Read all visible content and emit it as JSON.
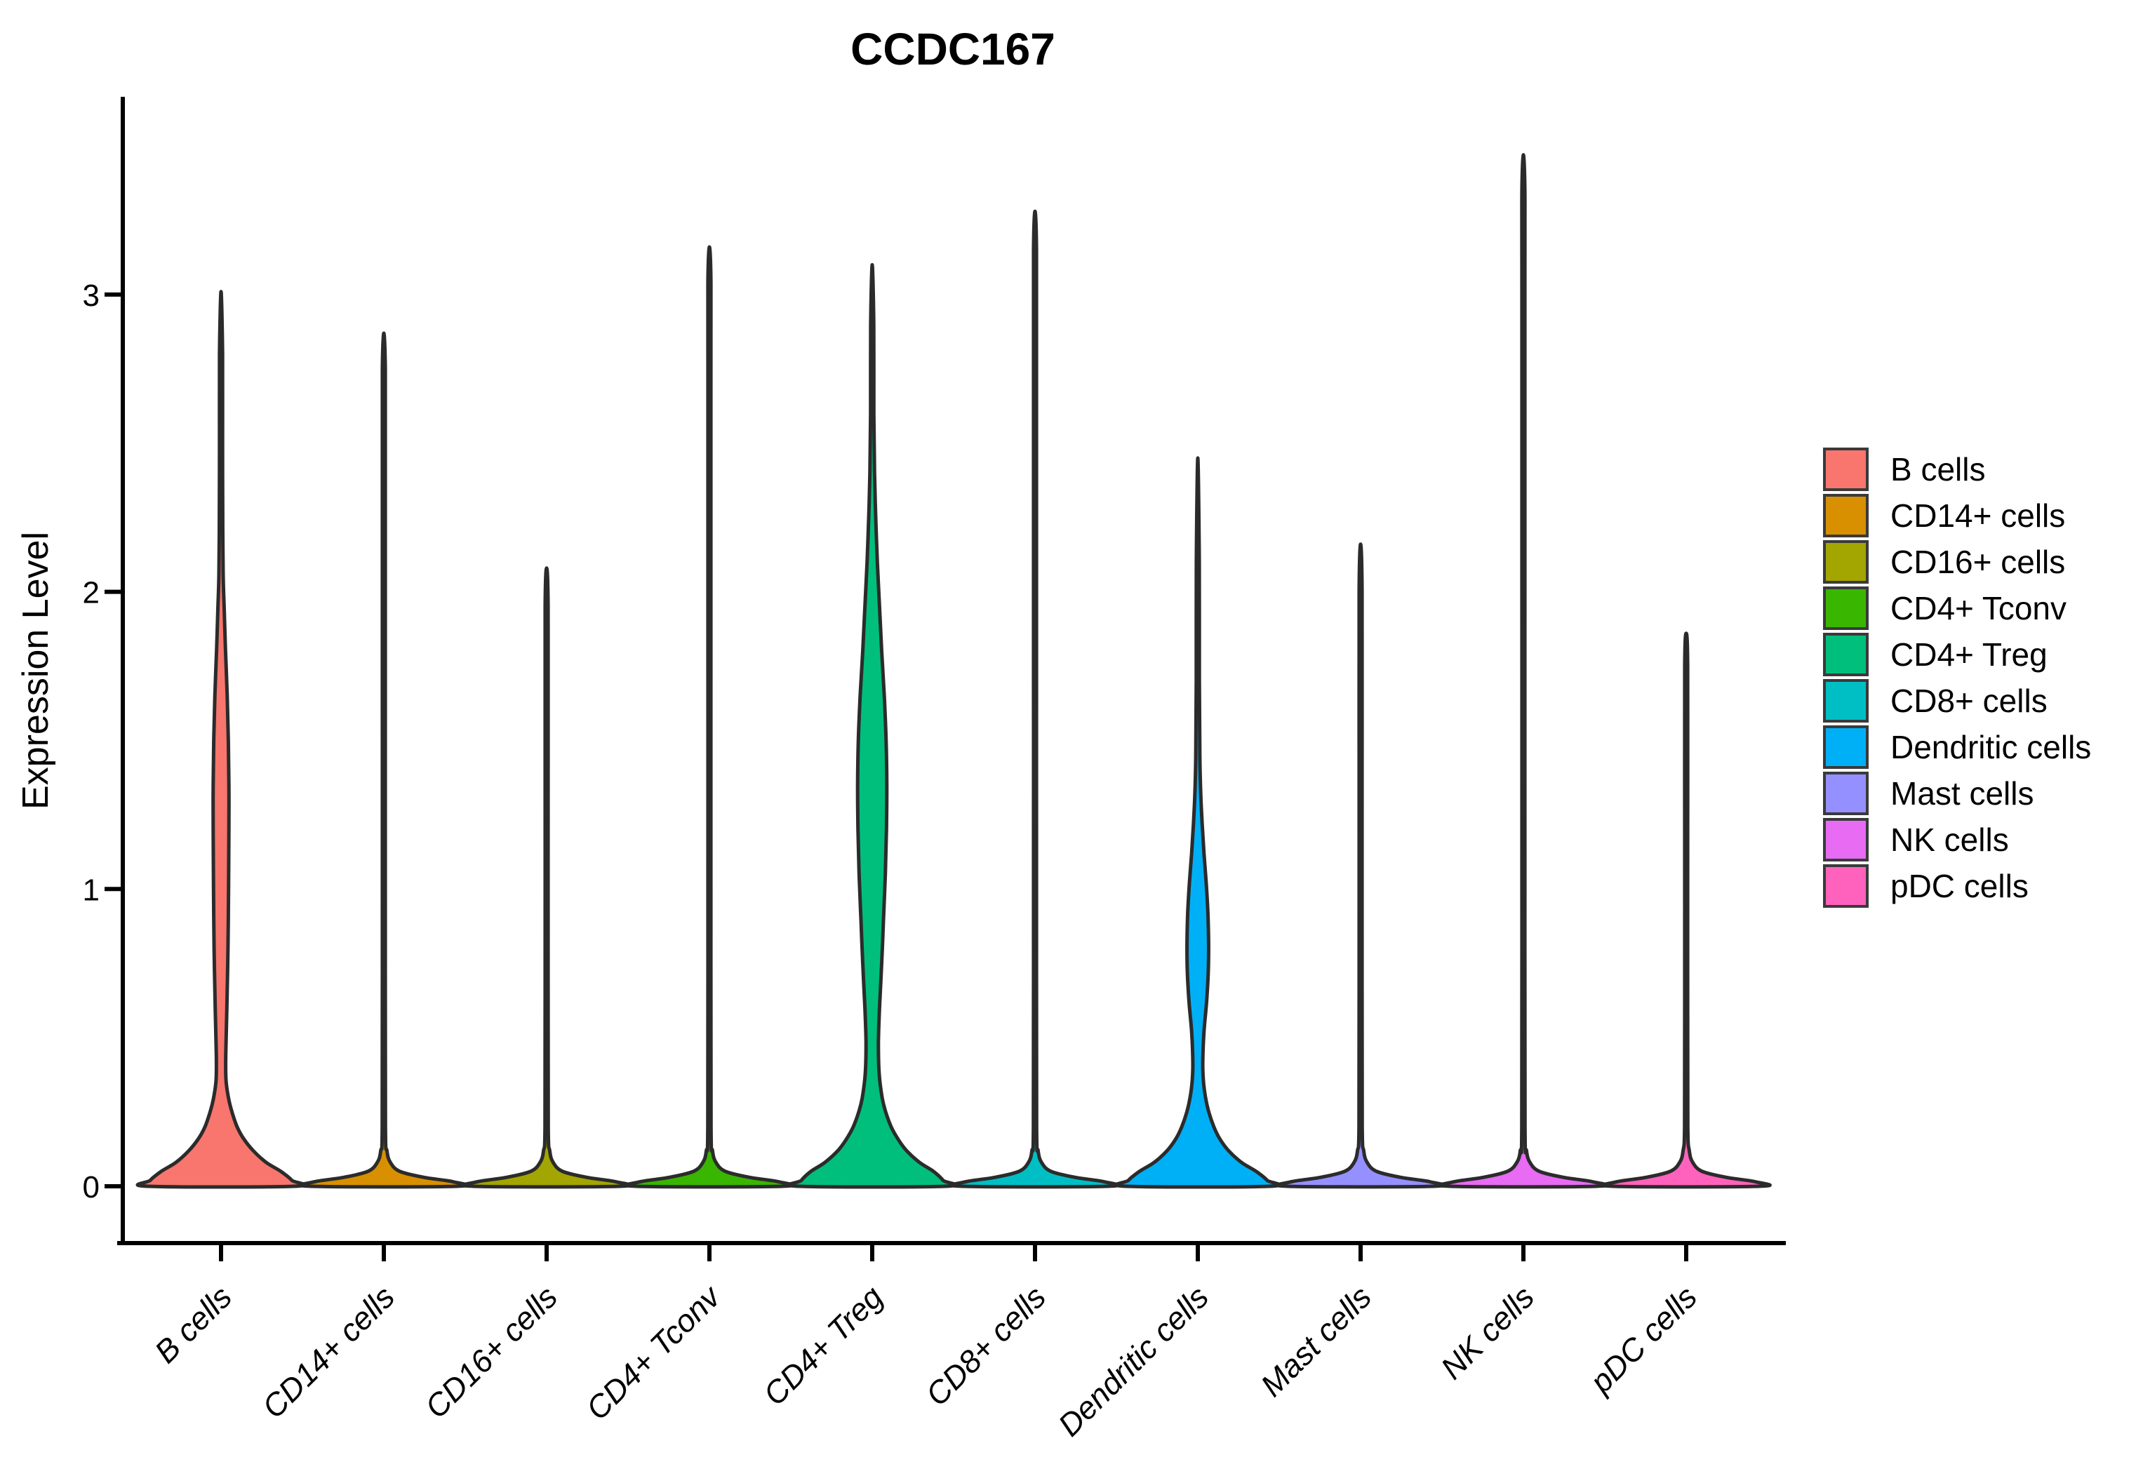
{
  "chart_data": {
    "type": "violin",
    "title": "CCDC167",
    "ylabel": "Expression Level",
    "xlabel": "",
    "y_ticks": [
      0,
      1,
      2,
      3
    ],
    "ylim": [
      0,
      3.6
    ],
    "grid": "off",
    "legend_position": "right",
    "outline_color": "#2b2b2b",
    "axis_color": "#000000",
    "categories": [
      "B cells",
      "CD14+ cells",
      "CD16+ cells",
      "CD4+ Tconv",
      "CD4+ Treg",
      "CD8+ cells",
      "Dendritic cells",
      "Mast cells",
      "NK cells",
      "pDC cells"
    ],
    "series": [
      {
        "name": "B cells",
        "color": "#F8766D",
        "max_expression": 3.01,
        "density": [
          [
            0,
            1.0
          ],
          [
            0.02,
            0.97
          ],
          [
            0.05,
            0.82
          ],
          [
            0.08,
            0.62
          ],
          [
            0.12,
            0.44
          ],
          [
            0.16,
            0.31
          ],
          [
            0.2,
            0.22
          ],
          [
            0.25,
            0.15
          ],
          [
            0.3,
            0.1
          ],
          [
            0.36,
            0.067
          ],
          [
            0.45,
            0.065
          ],
          [
            0.6,
            0.08
          ],
          [
            0.8,
            0.095
          ],
          [
            1.0,
            0.103
          ],
          [
            1.2,
            0.108
          ],
          [
            1.35,
            0.108
          ],
          [
            1.5,
            0.1
          ],
          [
            1.65,
            0.085
          ],
          [
            1.8,
            0.062
          ],
          [
            1.95,
            0.042
          ],
          [
            2.05,
            0.03
          ],
          [
            2.2,
            0.024
          ],
          [
            2.5,
            0.021
          ],
          [
            2.8,
            0.021
          ],
          [
            3.01,
            0
          ]
        ]
      },
      {
        "name": "CD14+ cells",
        "color": "#D89000",
        "max_expression": 2.87,
        "density": [
          [
            0,
            1.0
          ],
          [
            0.015,
            0.95
          ],
          [
            0.03,
            0.55
          ],
          [
            0.05,
            0.22
          ],
          [
            0.08,
            0.09
          ],
          [
            0.12,
            0.042
          ],
          [
            0.2,
            0.022
          ],
          [
            0.8,
            0.02
          ],
          [
            1.6,
            0.02
          ],
          [
            2.4,
            0.02
          ],
          [
            2.75,
            0.02
          ],
          [
            2.87,
            0
          ]
        ]
      },
      {
        "name": "CD16+ cells",
        "color": "#A3A500",
        "max_expression": 2.08,
        "density": [
          [
            0,
            1.0
          ],
          [
            0.015,
            0.95
          ],
          [
            0.03,
            0.55
          ],
          [
            0.05,
            0.22
          ],
          [
            0.08,
            0.09
          ],
          [
            0.12,
            0.042
          ],
          [
            0.2,
            0.022
          ],
          [
            0.7,
            0.02
          ],
          [
            1.4,
            0.02
          ],
          [
            1.95,
            0.02
          ],
          [
            2.08,
            0
          ]
        ]
      },
      {
        "name": "CD4+ Tconv",
        "color": "#39B600",
        "max_expression": 3.16,
        "density": [
          [
            0,
            1.0
          ],
          [
            0.015,
            0.95
          ],
          [
            0.03,
            0.55
          ],
          [
            0.05,
            0.22
          ],
          [
            0.08,
            0.09
          ],
          [
            0.12,
            0.042
          ],
          [
            0.2,
            0.022
          ],
          [
            0.9,
            0.02
          ],
          [
            1.8,
            0.02
          ],
          [
            2.7,
            0.02
          ],
          [
            3.05,
            0.02
          ],
          [
            3.16,
            0
          ]
        ]
      },
      {
        "name": "CD4+ Treg",
        "color": "#00BF7D",
        "max_expression": 3.1,
        "density": [
          [
            0,
            1.0
          ],
          [
            0.02,
            0.97
          ],
          [
            0.05,
            0.84
          ],
          [
            0.08,
            0.65
          ],
          [
            0.12,
            0.47
          ],
          [
            0.16,
            0.35
          ],
          [
            0.2,
            0.26
          ],
          [
            0.25,
            0.185
          ],
          [
            0.3,
            0.135
          ],
          [
            0.38,
            0.095
          ],
          [
            0.48,
            0.085
          ],
          [
            0.6,
            0.1
          ],
          [
            0.75,
            0.13
          ],
          [
            0.9,
            0.155
          ],
          [
            1.05,
            0.18
          ],
          [
            1.2,
            0.195
          ],
          [
            1.35,
            0.2
          ],
          [
            1.5,
            0.19
          ],
          [
            1.65,
            0.165
          ],
          [
            1.8,
            0.13
          ],
          [
            1.95,
            0.1
          ],
          [
            2.1,
            0.07
          ],
          [
            2.25,
            0.048
          ],
          [
            2.4,
            0.032
          ],
          [
            2.6,
            0.022
          ],
          [
            2.9,
            0.021
          ],
          [
            3.1,
            0
          ]
        ]
      },
      {
        "name": "CD8+ cells",
        "color": "#00BFC4",
        "max_expression": 3.28,
        "density": [
          [
            0,
            1.0
          ],
          [
            0.015,
            0.95
          ],
          [
            0.03,
            0.55
          ],
          [
            0.05,
            0.22
          ],
          [
            0.08,
            0.09
          ],
          [
            0.12,
            0.042
          ],
          [
            0.2,
            0.022
          ],
          [
            0.9,
            0.02
          ],
          [
            1.8,
            0.02
          ],
          [
            2.7,
            0.02
          ],
          [
            3.15,
            0.02
          ],
          [
            3.28,
            0
          ]
        ]
      },
      {
        "name": "Dendritic cells",
        "color": "#00B0F6",
        "max_expression": 2.45,
        "density": [
          [
            0,
            0.98
          ],
          [
            0.02,
            0.95
          ],
          [
            0.05,
            0.8
          ],
          [
            0.08,
            0.6
          ],
          [
            0.12,
            0.42
          ],
          [
            0.16,
            0.3
          ],
          [
            0.2,
            0.22
          ],
          [
            0.25,
            0.15
          ],
          [
            0.3,
            0.105
          ],
          [
            0.36,
            0.075
          ],
          [
            0.42,
            0.068
          ],
          [
            0.52,
            0.085
          ],
          [
            0.62,
            0.12
          ],
          [
            0.72,
            0.143
          ],
          [
            0.82,
            0.148
          ],
          [
            0.92,
            0.138
          ],
          [
            1.02,
            0.115
          ],
          [
            1.12,
            0.085
          ],
          [
            1.22,
            0.06
          ],
          [
            1.32,
            0.04
          ],
          [
            1.45,
            0.028
          ],
          [
            1.7,
            0.021
          ],
          [
            2.1,
            0.02
          ],
          [
            2.45,
            0
          ]
        ]
      },
      {
        "name": "Mast cells",
        "color": "#9590FF",
        "max_expression": 2.16,
        "density": [
          [
            0,
            1.0
          ],
          [
            0.015,
            0.95
          ],
          [
            0.03,
            0.55
          ],
          [
            0.05,
            0.22
          ],
          [
            0.08,
            0.09
          ],
          [
            0.12,
            0.042
          ],
          [
            0.2,
            0.022
          ],
          [
            0.7,
            0.02
          ],
          [
            1.4,
            0.02
          ],
          [
            2.0,
            0.02
          ],
          [
            2.16,
            0
          ]
        ]
      },
      {
        "name": "NK cells",
        "color": "#E76BF3",
        "max_expression": 3.47,
        "density": [
          [
            0,
            1.0
          ],
          [
            0.015,
            0.95
          ],
          [
            0.03,
            0.55
          ],
          [
            0.05,
            0.22
          ],
          [
            0.08,
            0.09
          ],
          [
            0.12,
            0.042
          ],
          [
            0.2,
            0.022
          ],
          [
            1.0,
            0.02
          ],
          [
            2.0,
            0.02
          ],
          [
            3.0,
            0.02
          ],
          [
            3.35,
            0.02
          ],
          [
            3.47,
            0
          ]
        ]
      },
      {
        "name": "pDC cells",
        "color": "#FF62BC",
        "max_expression": 1.86,
        "density": [
          [
            0,
            1.0
          ],
          [
            0.015,
            0.95
          ],
          [
            0.03,
            0.55
          ],
          [
            0.05,
            0.22
          ],
          [
            0.08,
            0.09
          ],
          [
            0.12,
            0.042
          ],
          [
            0.2,
            0.022
          ],
          [
            0.6,
            0.02
          ],
          [
            1.2,
            0.02
          ],
          [
            1.75,
            0.02
          ],
          [
            1.86,
            0
          ]
        ]
      }
    ]
  }
}
